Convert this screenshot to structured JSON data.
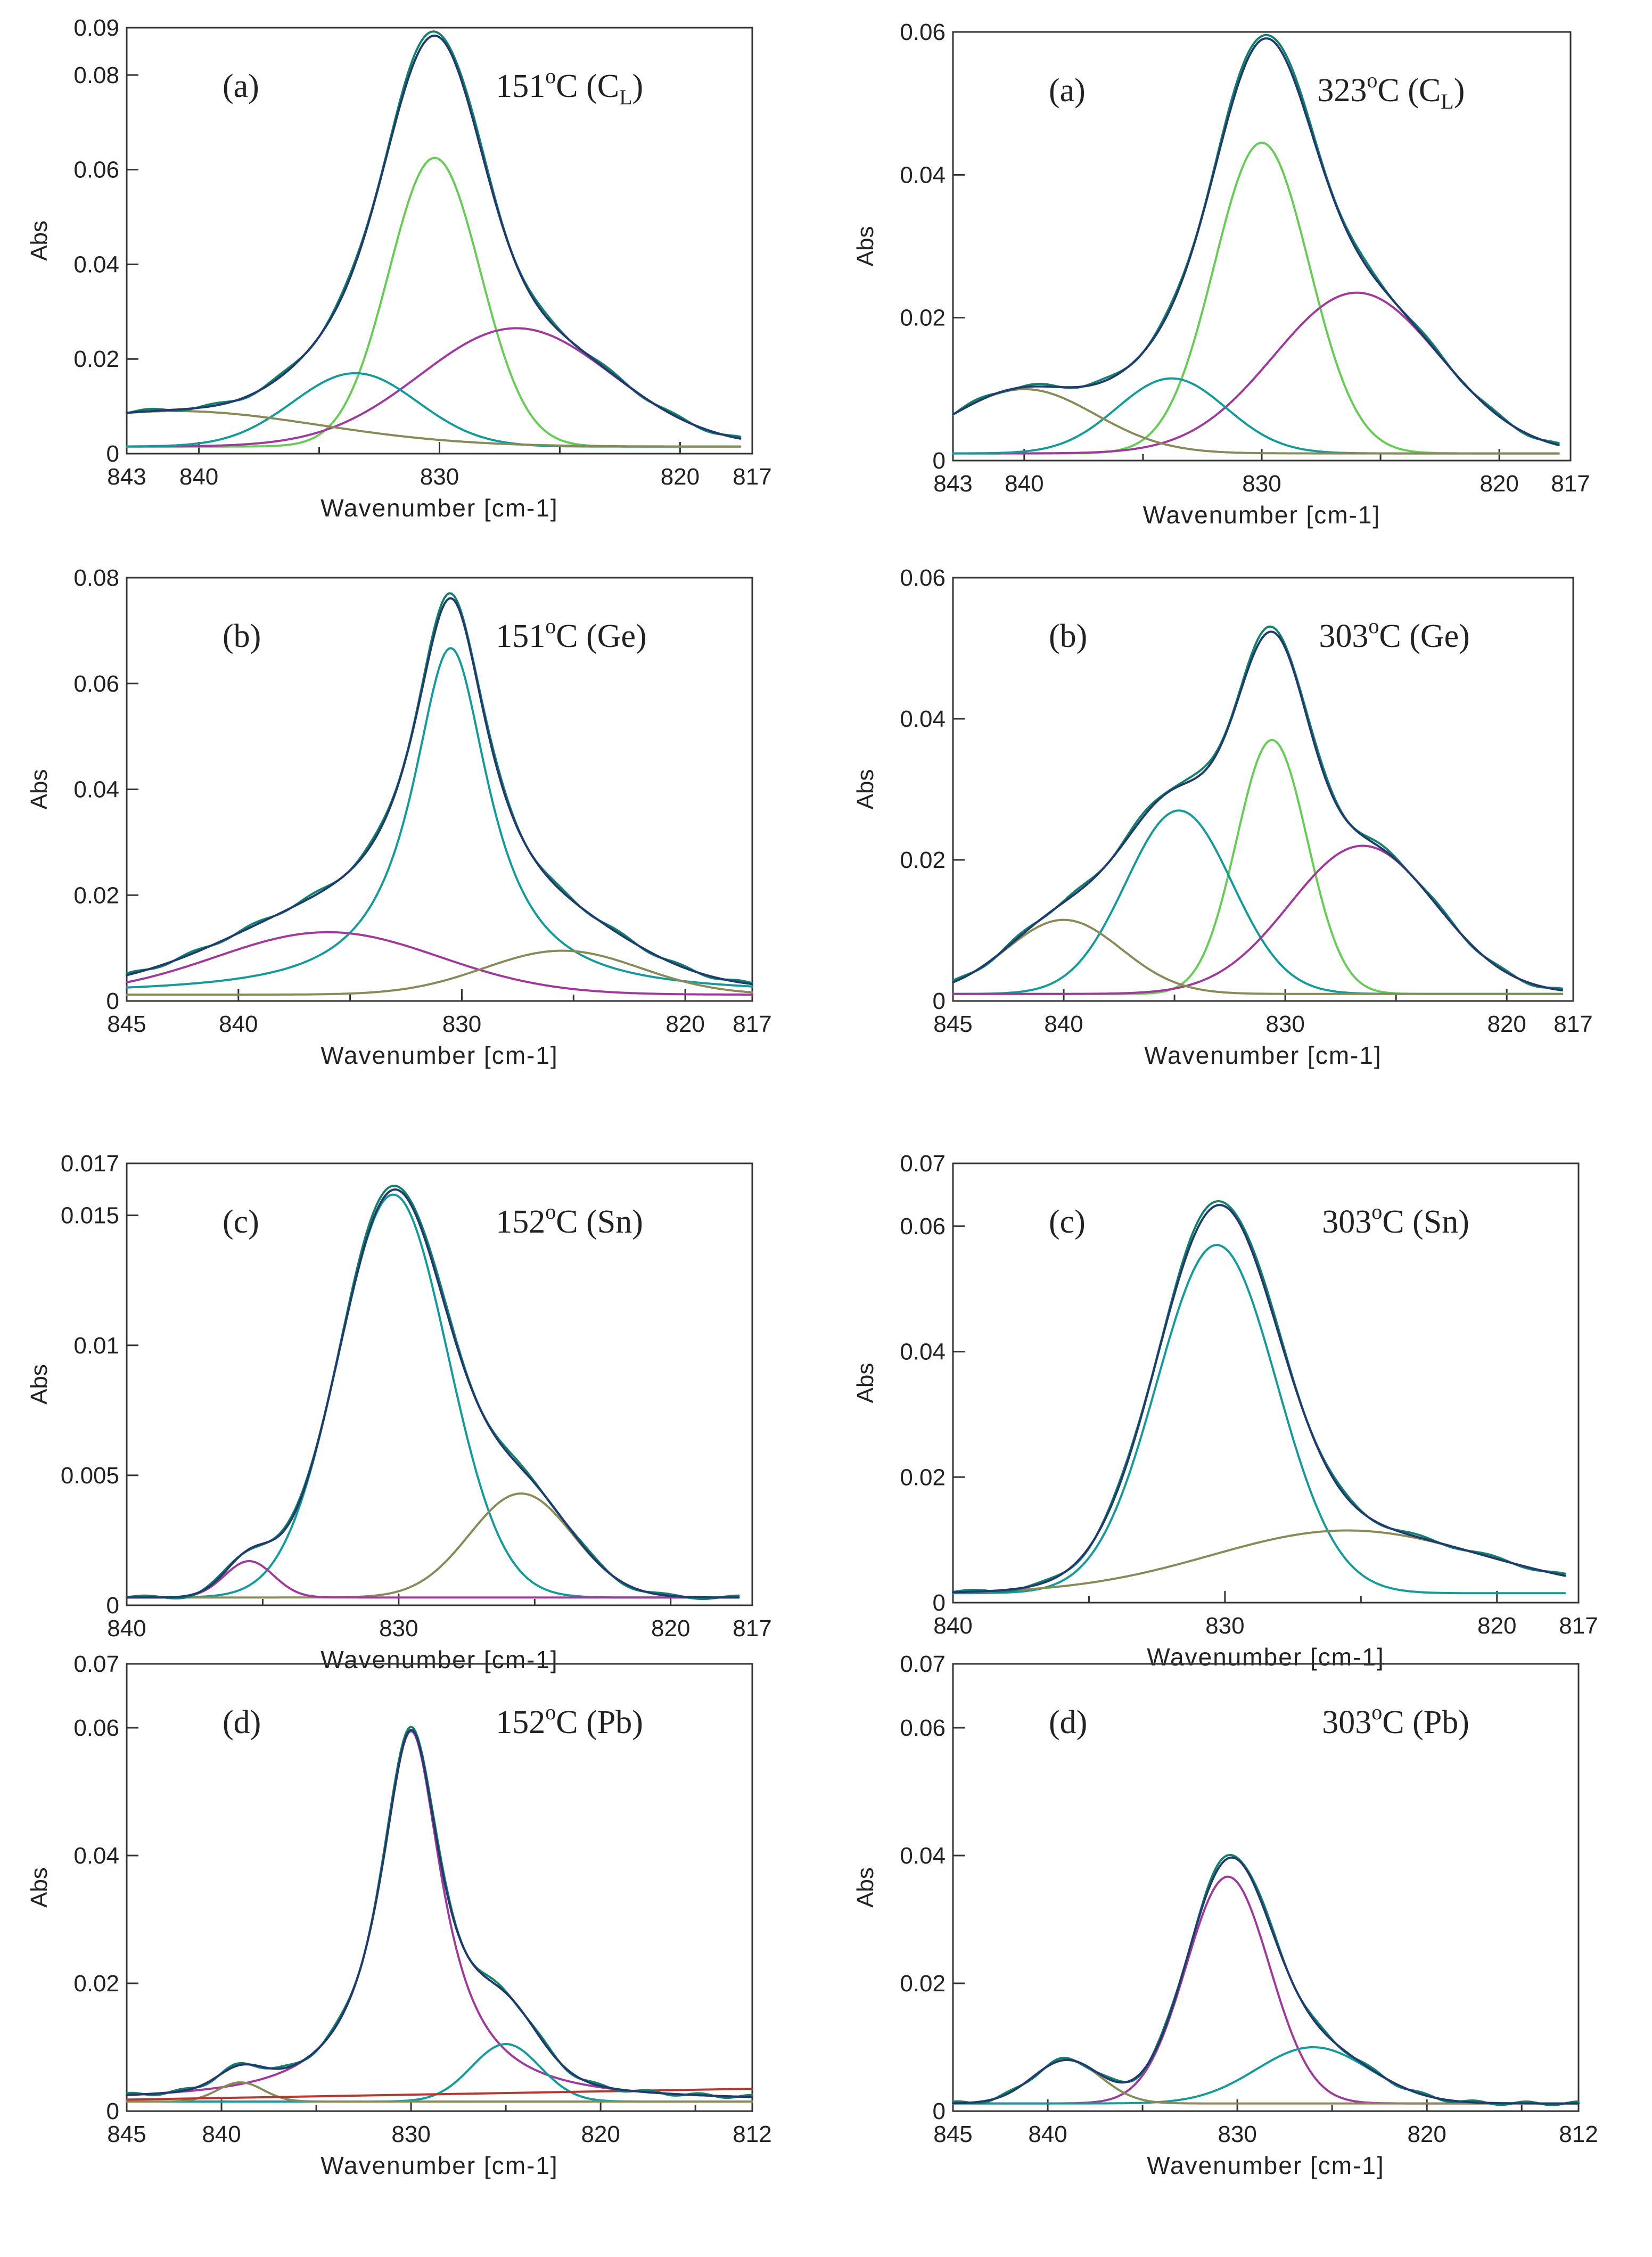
{
  "colors": {
    "envelope": "#1f3b6e",
    "measured": "#13806b",
    "green": "#66cc55",
    "teal": "#139a9a",
    "magenta": "#a0399b",
    "olive": "#8a8a58",
    "red": "#b4382e"
  },
  "chart_data": [
    {
      "id": "left-a",
      "type": "line",
      "label": "(a)",
      "title": "151",
      "title_sup": "o",
      "title_rest": "C (C",
      "title_sub": "L",
      "title_end": ")",
      "xlabel": "Wavenumber [cm-1]",
      "ylabel": "Abs",
      "xlim": [
        843,
        817
      ],
      "ylim": [
        0,
        0.09
      ],
      "xticks": [
        843,
        840,
        830,
        820,
        817
      ],
      "xtick_labels": [
        "843",
        "840",
        "830",
        "820",
        "817"
      ],
      "yticks": [
        0,
        0.02,
        0.04,
        0.06,
        0.08,
        0.09
      ],
      "ytick_labels": [
        "0",
        "0.02",
        "0.04",
        "0.06",
        "0.08",
        "0.09"
      ],
      "x_range": [
        843,
        817.5
      ],
      "baseline": 0.0015,
      "peaks": [
        {
          "name": "green",
          "center": 830.2,
          "amp": 0.061,
          "width": 1.9,
          "shape": "g"
        },
        {
          "name": "magenta",
          "center": 826.8,
          "amp": 0.025,
          "width": 4.0,
          "shape": "g"
        },
        {
          "name": "teal",
          "center": 833.5,
          "amp": 0.0155,
          "width": 2.6,
          "shape": "g"
        },
        {
          "name": "olive",
          "center": 841,
          "amp": 0.0075,
          "width": 6.0,
          "shape": "g"
        }
      ],
      "envelope_scale": 1.0
    },
    {
      "id": "right-a",
      "type": "line",
      "label": "(a)",
      "title": "323",
      "title_sup": "o",
      "title_rest": "C (C",
      "title_sub": "L",
      "title_end": ")",
      "xlabel": "Wavenumber [cm-1]",
      "ylabel": "Abs",
      "xlim": [
        843,
        817
      ],
      "ylim": [
        0,
        0.06
      ],
      "xticks": [
        843,
        840,
        830,
        820,
        817
      ],
      "xtick_labels": [
        "843",
        "840",
        "830",
        "820",
        "817"
      ],
      "yticks": [
        0,
        0.02,
        0.04,
        0.06
      ],
      "ytick_labels": [
        "0",
        "0.02",
        "0.04",
        "0.06"
      ],
      "x_range": [
        843,
        817.5
      ],
      "baseline": 0.001,
      "peaks": [
        {
          "name": "green",
          "center": 830,
          "amp": 0.0435,
          "width": 2.0,
          "shape": "g"
        },
        {
          "name": "magenta",
          "center": 826,
          "amp": 0.0225,
          "width": 3.5,
          "shape": "g"
        },
        {
          "name": "teal",
          "center": 833.8,
          "amp": 0.0105,
          "width": 2.3,
          "shape": "g"
        },
        {
          "name": "olive",
          "center": 840,
          "amp": 0.009,
          "width": 3.0,
          "shape": "g"
        }
      ],
      "envelope_scale": 1.0
    },
    {
      "id": "left-b",
      "type": "line",
      "label": "(b)",
      "title": "151",
      "title_sup": "o",
      "title_rest": "C (Ge)",
      "title_sub": "",
      "title_end": "",
      "xlabel": "Wavenumber [cm-1]",
      "ylabel": "Abs",
      "xlim": [
        845,
        817
      ],
      "ylim": [
        0,
        0.08
      ],
      "xticks": [
        845,
        840,
        830,
        820,
        817
      ],
      "xtick_labels": [
        "845",
        "840",
        "830",
        "820",
        "817"
      ],
      "yticks": [
        0,
        0.02,
        0.04,
        0.06,
        0.08
      ],
      "ytick_labels": [
        "0",
        "0.02",
        "0.04",
        "0.06",
        "0.08"
      ],
      "x_range": [
        845,
        817
      ],
      "baseline": 0.0012,
      "peaks": [
        {
          "name": "teal",
          "center": 830.5,
          "amp": 0.0655,
          "width": 2.1,
          "shape": "l"
        },
        {
          "name": "magenta",
          "center": 836,
          "amp": 0.0118,
          "width": 5.0,
          "shape": "g"
        },
        {
          "name": "olive",
          "center": 825.5,
          "amp": 0.0083,
          "width": 3.5,
          "shape": "g"
        }
      ],
      "envelope_scale": 1.0
    },
    {
      "id": "right-b",
      "type": "line",
      "label": "(b)",
      "title": "303",
      "title_sup": "o",
      "title_rest": "C (Ge)",
      "title_sub": "",
      "title_end": "",
      "xlabel": "Wavenumber [cm-1]",
      "ylabel": "Abs",
      "xlim": [
        845,
        817
      ],
      "ylim": [
        0,
        0.06
      ],
      "xticks": [
        845,
        840,
        830,
        820,
        817
      ],
      "xtick_labels": [
        "845",
        "840",
        "830",
        "820",
        "817"
      ],
      "yticks": [
        0,
        0.02,
        0.04,
        0.06
      ],
      "ytick_labels": [
        "0",
        "0.02",
        "0.04",
        "0.06"
      ],
      "x_range": [
        845,
        817.5
      ],
      "baseline": 0.001,
      "peaks": [
        {
          "name": "green",
          "center": 830.6,
          "amp": 0.036,
          "width": 1.6,
          "shape": "g"
        },
        {
          "name": "teal",
          "center": 834.8,
          "amp": 0.026,
          "width": 2.4,
          "shape": "g"
        },
        {
          "name": "magenta",
          "center": 826.5,
          "amp": 0.021,
          "width": 3.3,
          "shape": "g"
        },
        {
          "name": "olive",
          "center": 840,
          "amp": 0.0105,
          "width": 2.6,
          "shape": "g"
        }
      ],
      "envelope_scale": 1.0
    },
    {
      "id": "left-c",
      "type": "line",
      "label": "(c)",
      "title": "152",
      "title_sup": "o",
      "title_rest": "C (Sn)",
      "title_sub": "",
      "title_end": "",
      "xlabel": "Wavenumber [cm-1]",
      "ylabel": "Abs",
      "xlim": [
        840,
        817
      ],
      "ylim": [
        0,
        0.017
      ],
      "xticks": [
        840,
        830,
        820,
        817
      ],
      "xtick_labels": [
        "840",
        "830",
        "820",
        "817"
      ],
      "yticks": [
        0,
        0.005,
        0.01,
        0.015,
        0.017
      ],
      "ytick_labels": [
        "0",
        "0.005",
        "0.01",
        "0.015",
        "0.017"
      ],
      "x_range": [
        840,
        817.5
      ],
      "baseline": 0.0003,
      "peaks": [
        {
          "name": "teal",
          "center": 830.2,
          "amp": 0.0155,
          "width": 2.0,
          "shape": "g"
        },
        {
          "name": "olive",
          "center": 825.5,
          "amp": 0.004,
          "width": 1.9,
          "shape": "g"
        },
        {
          "name": "magenta",
          "center": 835.5,
          "amp": 0.0014,
          "width": 0.9,
          "shape": "g"
        }
      ],
      "envelope_scale": 1.0
    },
    {
      "id": "right-c",
      "type": "line",
      "label": "(c)",
      "title": "303",
      "title_sup": "o",
      "title_rest": "C (Sn)",
      "title_sub": "",
      "title_end": "",
      "xlabel": "Wavenumber [cm-1]",
      "ylabel": "Abs",
      "xlim": [
        840,
        817
      ],
      "ylim": [
        0,
        0.07
      ],
      "xticks": [
        840,
        830,
        820,
        817
      ],
      "xtick_labels": [
        "840",
        "830",
        "820",
        "817"
      ],
      "yticks": [
        0,
        0.02,
        0.04,
        0.06,
        0.07
      ],
      "ytick_labels": [
        "0",
        "0.02",
        "0.04",
        "0.06",
        "0.07"
      ],
      "x_range": [
        840,
        817.5
      ],
      "baseline": 0.0015,
      "peaks": [
        {
          "name": "teal",
          "center": 830.3,
          "amp": 0.0555,
          "width": 2.2,
          "shape": "g"
        },
        {
          "name": "olive",
          "center": 825.5,
          "amp": 0.01,
          "width": 5.0,
          "shape": "g"
        }
      ],
      "envelope_scale": 1.0
    },
    {
      "id": "left-d",
      "type": "line",
      "label": "(d)",
      "title": "152",
      "title_sup": "o",
      "title_rest": "C (Pb)",
      "title_sub": "",
      "title_end": "",
      "xlabel": "Wavenumber [cm-1]",
      "ylabel": "Abs",
      "xlim": [
        845,
        812
      ],
      "ylim": [
        0,
        0.07
      ],
      "xticks": [
        845,
        840,
        830,
        820,
        812
      ],
      "xtick_labels": [
        "845",
        "840",
        "830",
        "820",
        "812"
      ],
      "yticks": [
        0,
        0.02,
        0.04,
        0.06,
        0.07
      ],
      "ytick_labels": [
        "0",
        "0.02",
        "0.04",
        "0.06",
        "0.07"
      ],
      "x_range": [
        845,
        812
      ],
      "baseline": 0.0015,
      "peaks": [
        {
          "name": "magenta",
          "center": 830,
          "amp": 0.058,
          "width": 2.0,
          "shape": "l"
        },
        {
          "name": "teal",
          "center": 825,
          "amp": 0.009,
          "width": 1.8,
          "shape": "g"
        },
        {
          "name": "olive",
          "center": 839,
          "amp": 0.003,
          "width": 1.2,
          "shape": "g"
        }
      ],
      "extra_line": {
        "name": "red",
        "from": [
          845,
          0.0018
        ],
        "to": [
          812,
          0.0035
        ]
      },
      "envelope_scale": 1.0
    },
    {
      "id": "right-d",
      "type": "line",
      "label": "(d)",
      "title": "303",
      "title_sup": "o",
      "title_rest": "C (Pb)",
      "title_sub": "",
      "title_end": "",
      "xlabel": "Wavenumber [cm-1]",
      "ylabel": "Abs",
      "xlim": [
        845,
        812
      ],
      "ylim": [
        0,
        0.07
      ],
      "xticks": [
        845,
        840,
        830,
        820,
        812
      ],
      "xtick_labels": [
        "845",
        "840",
        "830",
        "820",
        "812"
      ],
      "yticks": [
        0,
        0.02,
        0.04,
        0.06,
        0.07
      ],
      "ytick_labels": [
        "0",
        "0.02",
        "0.04",
        "0.06",
        "0.07"
      ],
      "x_range": [
        845,
        812
      ],
      "baseline": 0.0012,
      "peaks": [
        {
          "name": "magenta",
          "center": 830.5,
          "amp": 0.0355,
          "width": 2.2,
          "shape": "g"
        },
        {
          "name": "teal",
          "center": 826,
          "amp": 0.0088,
          "width": 3.0,
          "shape": "g"
        },
        {
          "name": "olive",
          "center": 839,
          "amp": 0.0068,
          "width": 1.8,
          "shape": "g"
        }
      ],
      "envelope_scale": 1.0
    }
  ]
}
